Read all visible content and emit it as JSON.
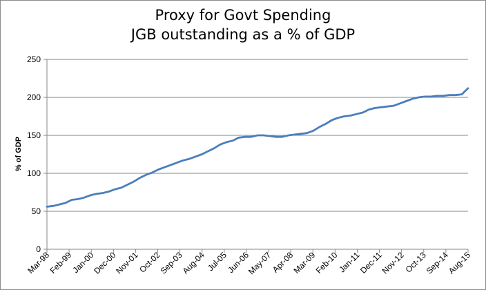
{
  "chart_data": {
    "type": "line",
    "title": [
      "Proxy for Govt Spending",
      "JGB outstanding as a % of GDP"
    ],
    "xlabel": "",
    "ylabel": "% of GDP",
    "ylim": [
      0,
      250
    ],
    "yticks": [
      0,
      50,
      100,
      150,
      200,
      250
    ],
    "grid": "horizontal",
    "legend": "none",
    "series_color": "#4a7ebb",
    "xtick_labels": [
      "Mar-98",
      "Feb-99",
      "Jan-00",
      "Dec-00",
      "Nov-01",
      "Oct-02",
      "Sep-03",
      "Aug-04",
      "Jul-05",
      "Jun-06",
      "May-07",
      "Apr-08",
      "Mar-09",
      "Feb-10",
      "Jan-11",
      "Dec-11",
      "Nov-12",
      "Oct-13",
      "Sep-14",
      "Aug-15"
    ],
    "series": [
      {
        "values": [
          56,
          57,
          59,
          61,
          65,
          66,
          68,
          71,
          73,
          74,
          76,
          79,
          81,
          85,
          89,
          94,
          98,
          101,
          105,
          108,
          111,
          114,
          117,
          119,
          122,
          125,
          129,
          133,
          138,
          141,
          143,
          147,
          148,
          148,
          150,
          150,
          149,
          148,
          148,
          150,
          151,
          152,
          153,
          156,
          161,
          165,
          170,
          173,
          175,
          176,
          178,
          180,
          184,
          186,
          187,
          188,
          189,
          192,
          195,
          198,
          200,
          201,
          201,
          202,
          202,
          203,
          203,
          204,
          212
        ]
      }
    ]
  }
}
